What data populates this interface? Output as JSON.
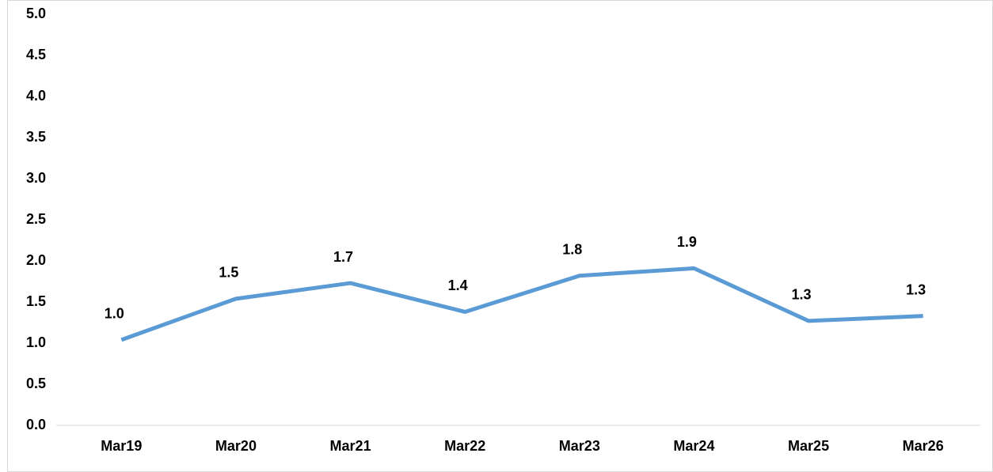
{
  "chart_data": {
    "type": "line",
    "categories": [
      "Mar19",
      "Mar20",
      "Mar21",
      "Mar22",
      "Mar23",
      "Mar24",
      "Mar25",
      "Mar26"
    ],
    "series": [
      {
        "color": "#5b9bd5",
        "values": [
          1.04,
          1.54,
          1.73,
          1.38,
          1.82,
          1.91,
          1.27,
          1.33
        ],
        "value_labels": [
          "1.0",
          "1.5",
          "1.7",
          "1.4",
          "1.8",
          "1.9",
          "1.3",
          "1.3"
        ]
      }
    ],
    "ylim": [
      0,
      5
    ],
    "yticks": [
      {
        "value": 0,
        "label": "0.0"
      },
      0.5,
      {
        "value": 1,
        "label": "1.0"
      },
      1.5,
      {
        "value": 2,
        "label": "2.0"
      },
      2.5,
      {
        "value": 3,
        "label": "3.0"
      },
      3.5,
      {
        "value": 4,
        "label": "4.0"
      },
      4.5,
      {
        "value": 5,
        "label": "5.0"
      }
    ],
    "grid": false
  }
}
